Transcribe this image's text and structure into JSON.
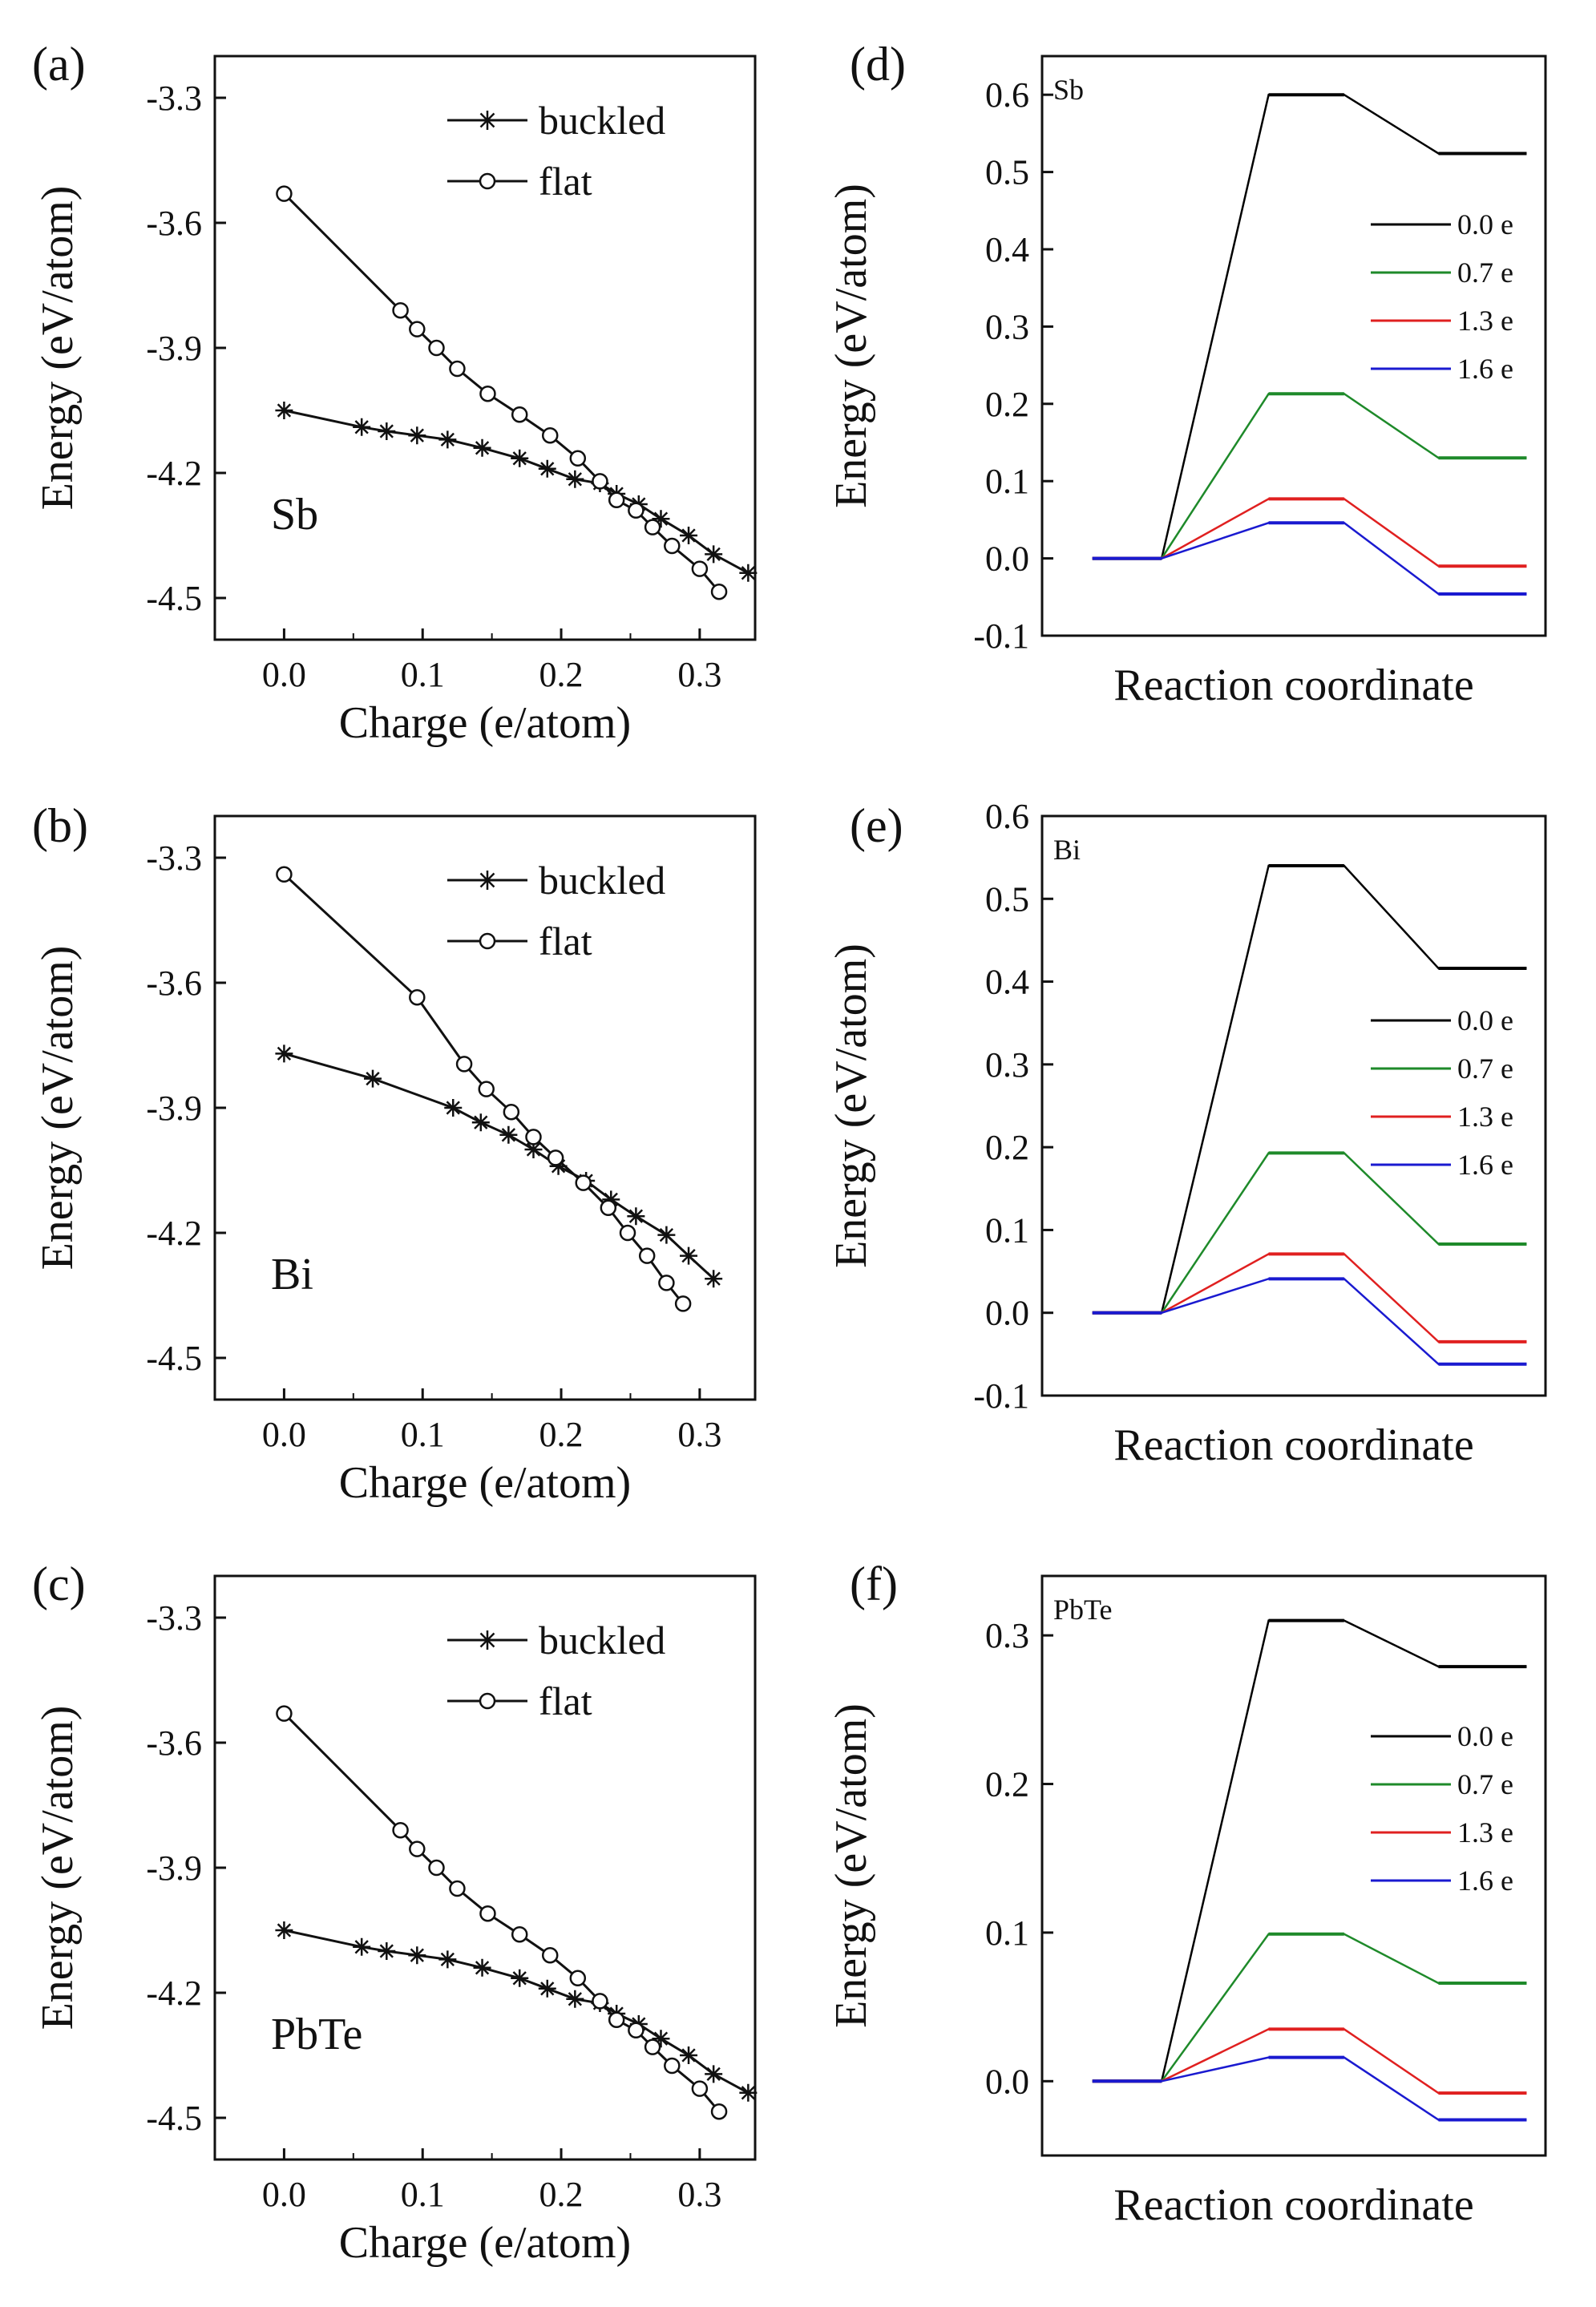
{
  "chart_data": [
    {
      "panel": "(a)",
      "type": "line",
      "inset_label": "Sb",
      "xlabel": "Charge (e/atom)",
      "ylabel": "Energy (eV/atom)",
      "xlim": [
        -0.05,
        0.34
      ],
      "ylim": [
        -4.6,
        -3.2
      ],
      "xticks": [
        0.0,
        0.1,
        0.2,
        0.3
      ],
      "xtick_labels": [
        "0.0",
        "0.1",
        "0.2",
        "0.3"
      ],
      "yticks": [
        -3.3,
        -3.6,
        -3.9,
        -4.2,
        -4.5
      ],
      "ytick_labels": [
        "-3.3",
        "-3.6",
        "-3.9",
        "-4.2",
        "-4.5"
      ],
      "legend": [
        "buckled",
        "flat"
      ],
      "series": [
        {
          "name": "buckled",
          "marker": "star",
          "x": [
            0.0,
            0.056,
            0.074,
            0.096,
            0.118,
            0.143,
            0.17,
            0.19,
            0.21,
            0.228,
            0.24,
            0.256,
            0.272,
            0.292,
            0.31,
            0.335
          ],
          "y": [
            -4.05,
            -4.09,
            -4.1,
            -4.11,
            -4.12,
            -4.14,
            -4.165,
            -4.19,
            -4.215,
            -4.225,
            -4.25,
            -4.275,
            -4.31,
            -4.35,
            -4.395,
            -4.44
          ]
        },
        {
          "name": "flat",
          "marker": "circle",
          "x": [
            0.0,
            0.084,
            0.096,
            0.11,
            0.125,
            0.147,
            0.17,
            0.192,
            0.212,
            0.228,
            0.24,
            0.254,
            0.266,
            0.28,
            0.3,
            0.314
          ],
          "y": [
            -3.53,
            -3.81,
            -3.855,
            -3.9,
            -3.95,
            -4.01,
            -4.06,
            -4.11,
            -4.165,
            -4.22,
            -4.265,
            -4.29,
            -4.33,
            -4.375,
            -4.43,
            -4.485
          ]
        }
      ]
    },
    {
      "panel": "(b)",
      "type": "line",
      "inset_label": "Bi",
      "xlabel": "Charge (e/atom)",
      "ylabel": "Energy (eV/atom)",
      "xlim": [
        -0.05,
        0.34
      ],
      "ylim": [
        -4.6,
        -3.2
      ],
      "xticks": [
        0.0,
        0.1,
        0.2,
        0.3
      ],
      "xtick_labels": [
        "0.0",
        "0.1",
        "0.2",
        "0.3"
      ],
      "yticks": [
        -3.3,
        -3.6,
        -3.9,
        -4.2,
        -4.5
      ],
      "ytick_labels": [
        "-3.3",
        "-3.6",
        "-3.9",
        "-4.2",
        "-4.5"
      ],
      "legend": [
        "buckled",
        "flat"
      ],
      "series": [
        {
          "name": "buckled",
          "marker": "star",
          "x": [
            0.0,
            0.064,
            0.122,
            0.142,
            0.162,
            0.18,
            0.198,
            0.218,
            0.236,
            0.254,
            0.276,
            0.292,
            0.31
          ],
          "y": [
            -3.77,
            -3.83,
            -3.9,
            -3.935,
            -3.965,
            -4.0,
            -4.04,
            -4.075,
            -4.12,
            -4.16,
            -4.205,
            -4.255,
            -4.31
          ]
        },
        {
          "name": "flat",
          "marker": "circle",
          "x": [
            0.0,
            0.096,
            0.13,
            0.146,
            0.164,
            0.18,
            0.196,
            0.216,
            0.234,
            0.248,
            0.262,
            0.276,
            0.288
          ],
          "y": [
            -3.34,
            -3.635,
            -3.795,
            -3.855,
            -3.91,
            -3.97,
            -4.02,
            -4.08,
            -4.14,
            -4.2,
            -4.255,
            -4.32,
            -4.37
          ]
        }
      ]
    },
    {
      "panel": "(c)",
      "type": "line",
      "inset_label": "PbTe",
      "xlabel": "Charge (e/atom)",
      "ylabel": "Energy (eV/atom)",
      "xlim": [
        -0.05,
        0.34
      ],
      "ylim": [
        -4.6,
        -3.2
      ],
      "xticks": [
        0.0,
        0.1,
        0.2,
        0.3
      ],
      "xtick_labels": [
        "0.0",
        "0.1",
        "0.2",
        "0.3"
      ],
      "yticks": [
        -3.3,
        -3.6,
        -3.9,
        -4.2,
        -4.5
      ],
      "ytick_labels": [
        "-3.3",
        "-3.6",
        "-3.9",
        "-4.2",
        "-4.5"
      ],
      "legend": [
        "buckled",
        "flat"
      ],
      "series": [
        {
          "name": "buckled",
          "marker": "star",
          "x": [
            0.0,
            0.056,
            0.074,
            0.096,
            0.118,
            0.143,
            0.17,
            0.19,
            0.21,
            0.228,
            0.24,
            0.256,
            0.272,
            0.292,
            0.31,
            0.335
          ],
          "y": [
            -4.05,
            -4.09,
            -4.1,
            -4.11,
            -4.12,
            -4.14,
            -4.165,
            -4.19,
            -4.215,
            -4.225,
            -4.25,
            -4.275,
            -4.31,
            -4.35,
            -4.395,
            -4.44
          ]
        },
        {
          "name": "flat",
          "marker": "circle",
          "x": [
            0.0,
            0.084,
            0.096,
            0.11,
            0.125,
            0.147,
            0.17,
            0.192,
            0.212,
            0.228,
            0.24,
            0.254,
            0.266,
            0.28,
            0.3,
            0.314
          ],
          "y": [
            -3.53,
            -3.81,
            -3.855,
            -3.9,
            -3.95,
            -4.01,
            -4.06,
            -4.11,
            -4.165,
            -4.22,
            -4.265,
            -4.29,
            -4.33,
            -4.375,
            -4.43,
            -4.485
          ]
        }
      ]
    },
    {
      "panel": "(d)",
      "type": "line",
      "inset_label": "Sb",
      "xlabel": "Reaction coordinate",
      "ylabel": "Energy (eV/atom)",
      "xlim": [
        0,
        8
      ],
      "ylim": [
        -0.1,
        0.65
      ],
      "yticks": [
        -0.1,
        0.0,
        0.1,
        0.2,
        0.3,
        0.4,
        0.5,
        0.6
      ],
      "ytick_labels": [
        "-0.1",
        "0.0",
        "0.1",
        "0.2",
        "0.3",
        "0.4",
        "0.5",
        "0.6"
      ],
      "legend": [
        "0.0 e",
        "0.7 e",
        "1.3 e",
        "1.6 e"
      ],
      "series": [
        {
          "name": "0.0 e",
          "color": "#000000",
          "x": [
            0.8,
            1.9,
            3.6,
            4.8,
            6.3,
            7.7
          ],
          "y": [
            0.0,
            0.0,
            0.6,
            0.6,
            0.524,
            0.524
          ]
        },
        {
          "name": "0.7 e",
          "color": "#1e8a2a",
          "x": [
            0.8,
            1.9,
            3.6,
            4.8,
            6.3,
            7.7
          ],
          "y": [
            0.0,
            0.0,
            0.213,
            0.213,
            0.13,
            0.13
          ]
        },
        {
          "name": "1.3 e",
          "color": "#e02020",
          "x": [
            0.8,
            1.9,
            3.6,
            4.8,
            6.3,
            7.7
          ],
          "y": [
            0.0,
            0.0,
            0.077,
            0.077,
            -0.01,
            -0.01
          ]
        },
        {
          "name": "1.6 e",
          "color": "#1a1ad0",
          "x": [
            0.8,
            1.9,
            3.6,
            4.8,
            6.3,
            7.7
          ],
          "y": [
            0.0,
            0.0,
            0.046,
            0.046,
            -0.046,
            -0.046
          ]
        }
      ]
    },
    {
      "panel": "(e)",
      "type": "line",
      "inset_label": "Bi",
      "xlabel": "Reaction coordinate",
      "ylabel": "Energy (eV/atom)",
      "xlim": [
        0,
        8
      ],
      "ylim": [
        -0.1,
        0.6
      ],
      "yticks": [
        -0.1,
        0.0,
        0.1,
        0.2,
        0.3,
        0.4,
        0.5,
        0.6
      ],
      "ytick_labels": [
        "-0.1",
        "0.0",
        "0.1",
        "0.2",
        "0.3",
        "0.4",
        "0.5",
        "0.6"
      ],
      "legend": [
        "0.0 e",
        "0.7 e",
        "1.3 e",
        "1.6 e"
      ],
      "series": [
        {
          "name": "0.0 e",
          "color": "#000000",
          "x": [
            0.8,
            1.9,
            3.6,
            4.8,
            6.3,
            7.7
          ],
          "y": [
            0.0,
            0.0,
            0.54,
            0.54,
            0.416,
            0.416
          ]
        },
        {
          "name": "0.7 e",
          "color": "#1e8a2a",
          "x": [
            0.8,
            1.9,
            3.6,
            4.8,
            6.3,
            7.7
          ],
          "y": [
            0.0,
            0.0,
            0.193,
            0.193,
            0.083,
            0.083
          ]
        },
        {
          "name": "1.3 e",
          "color": "#e02020",
          "x": [
            0.8,
            1.9,
            3.6,
            4.8,
            6.3,
            7.7
          ],
          "y": [
            0.0,
            0.0,
            0.071,
            0.071,
            -0.035,
            -0.035
          ]
        },
        {
          "name": "1.6 e",
          "color": "#1a1ad0",
          "x": [
            0.8,
            1.9,
            3.6,
            4.8,
            6.3,
            7.7
          ],
          "y": [
            0.0,
            0.0,
            0.041,
            0.041,
            -0.062,
            -0.062
          ]
        }
      ]
    },
    {
      "panel": "(f)",
      "type": "line",
      "inset_label": "PbTe",
      "xlabel": "Reaction coordinate",
      "ylabel": "Energy (eV/atom)",
      "xlim": [
        0,
        8
      ],
      "ylim": [
        -0.05,
        0.34
      ],
      "yticks": [
        0.0,
        0.1,
        0.2,
        0.3
      ],
      "ytick_labels": [
        "0.0",
        "0.1",
        "0.2",
        "0.3"
      ],
      "legend": [
        "0.0 e",
        "0.7 e",
        "1.3 e",
        "1.6 e"
      ],
      "series": [
        {
          "name": "0.0 e",
          "color": "#000000",
          "x": [
            0.8,
            1.9,
            3.6,
            4.8,
            6.3,
            7.7
          ],
          "y": [
            0.0,
            0.0,
            0.31,
            0.31,
            0.279,
            0.279
          ]
        },
        {
          "name": "0.7 e",
          "color": "#1e8a2a",
          "x": [
            0.8,
            1.9,
            3.6,
            4.8,
            6.3,
            7.7
          ],
          "y": [
            0.0,
            0.0,
            0.099,
            0.099,
            0.066,
            0.066
          ]
        },
        {
          "name": "1.3 e",
          "color": "#e02020",
          "x": [
            0.8,
            1.9,
            3.6,
            4.8,
            6.3,
            7.7
          ],
          "y": [
            0.0,
            0.0,
            0.035,
            0.035,
            -0.008,
            -0.008
          ]
        },
        {
          "name": "1.6 e",
          "color": "#1a1ad0",
          "x": [
            0.8,
            1.9,
            3.6,
            4.8,
            6.3,
            7.7
          ],
          "y": [
            0.0,
            0.0,
            0.016,
            0.016,
            -0.026,
            -0.026
          ]
        }
      ]
    }
  ]
}
